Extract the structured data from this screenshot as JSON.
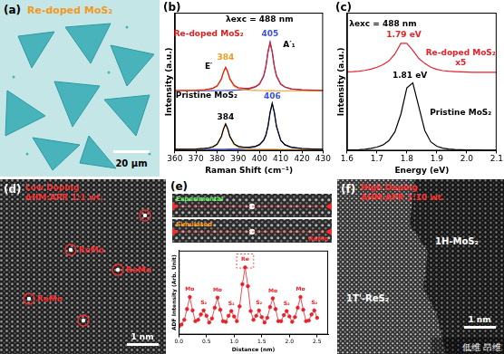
{
  "chart_data": [
    {
      "type": "line",
      "panel": "(b)",
      "x_label": "Raman Shift (cm⁻¹)",
      "y_label": "Intensity (a.u.)",
      "tick_labels": "x",
      "grid": false,
      "x": [
        360,
        365,
        370,
        374,
        376,
        378,
        380,
        382,
        383,
        384,
        385,
        386,
        388,
        390,
        392,
        395,
        398,
        400,
        402,
        403,
        404,
        405,
        406,
        407,
        408,
        410,
        412,
        415,
        420,
        425,
        430
      ],
      "xlim": [
        360,
        430
      ],
      "xticks": [
        360,
        370,
        380,
        390,
        400,
        410,
        420,
        430
      ],
      "ylim": [
        0,
        120
      ],
      "series": [
        {
          "color": "#e02020",
          "line_style": "solid",
          "values": [
            52.3,
            52.4,
            52.6,
            53.0,
            53.5,
            54.4,
            56.4,
            62.4,
            68.5,
            72.6,
            68.6,
            62.6,
            56.7,
            54.8,
            54.3,
            54.1,
            55.7,
            58.2,
            65.3,
            73.3,
            86.0,
            94.3,
            86.0,
            73.3,
            65.2,
            58.0,
            55.4,
            53.8,
            52.9,
            52.6,
            52.4
          ]
        },
        {
          "color": "#f39a1e",
          "line_style": "solid",
          "values": [
            52.1,
            52.2,
            52.4,
            52.8,
            53.2,
            54,
            56,
            62,
            68,
            72,
            68,
            62,
            56,
            54,
            53.2,
            52.6,
            52.4,
            52.3,
            52.3,
            52.2,
            52.2,
            52.2,
            52.2,
            52.2,
            52.1,
            52.1,
            52.1,
            52.1,
            52.1,
            52,
            52
          ]
        },
        {
          "color": "#3a4fe0",
          "line_style": "solid",
          "values": [
            52.1,
            52.1,
            52.1,
            52.2,
            52.2,
            52.2,
            52.3,
            52.3,
            52.3,
            52.4,
            52.4,
            52.5,
            52.6,
            52.7,
            53,
            53.6,
            55.2,
            57.8,
            64.9,
            73,
            85.6,
            94,
            85.6,
            73,
            64.9,
            57.8,
            55.2,
            53.6,
            52.7,
            52.4,
            52.3
          ]
        },
        {
          "color": "#000000",
          "line_style": "solid",
          "values": [
            1.2,
            1.3,
            1.5,
            2.0,
            2.5,
            3.4,
            5.6,
            12.3,
            18.9,
            23.3,
            19.0,
            12.4,
            5.9,
            3.8,
            3.1,
            3.0,
            3.8,
            5.3,
            9.3,
            13.5,
            21.2,
            33.2,
            41.2,
            33.2,
            21.2,
            9.1,
            5.1,
            3.0,
            1.9,
            1.5,
            1.3
          ]
        },
        {
          "color": "#f39a1e",
          "line_style": "solid",
          "values": [
            1.2,
            1.2,
            1.4,
            1.9,
            2.3,
            3.2,
            5.4,
            12,
            18.6,
            23,
            18.6,
            12,
            5.4,
            3.2,
            2.3,
            1.7,
            1.4,
            1.3,
            1.3,
            1.2,
            1.2,
            1.2,
            1.2,
            1.2,
            1.2,
            1.1,
            1.1,
            1.1,
            1.1,
            1,
            1
          ]
        },
        {
          "color": "#3a4fe0",
          "line_style": "solid",
          "values": [
            1.1,
            1.1,
            1.1,
            1.2,
            1.2,
            1.2,
            1.2,
            1.3,
            1.3,
            1.3,
            1.4,
            1.4,
            1.5,
            1.6,
            1.8,
            2.3,
            3.4,
            5,
            9,
            13.3,
            21,
            33,
            41,
            33,
            21,
            9,
            5,
            2.9,
            1.8,
            1.4,
            1.3
          ]
        }
      ],
      "annotations": [
        {
          "text": "λexc = 488 nm",
          "x": 400,
          "y": 114,
          "color": "#000000"
        },
        {
          "text": "Re-doped MoS₂",
          "x": 376,
          "y": 101,
          "color": "#e02020"
        },
        {
          "text": "384",
          "x": 384,
          "y": 81,
          "color": "#f39a1e"
        },
        {
          "text": "E′",
          "x": 376,
          "y": 73,
          "color": "#000000"
        },
        {
          "text": "405",
          "x": 405,
          "y": 101,
          "color": "#3a4fe0"
        },
        {
          "text": "A′₁",
          "x": 414,
          "y": 92,
          "color": "#000000"
        },
        {
          "text": "Pristine MoS₂",
          "x": 375,
          "y": 48,
          "color": "#000000"
        },
        {
          "text": "384",
          "x": 384,
          "y": 29,
          "color": "#000000"
        },
        {
          "text": "406",
          "x": 406,
          "y": 47,
          "color": "#3a4fe0"
        }
      ]
    },
    {
      "type": "line",
      "panel": "(c)",
      "x_label": "Energy (eV)",
      "y_label": "Intensity (a.u.)",
      "tick_labels": "x",
      "grid": false,
      "x": [
        1.6,
        1.62,
        1.64,
        1.66,
        1.68,
        1.7,
        1.72,
        1.74,
        1.76,
        1.78,
        1.8,
        1.82,
        1.84,
        1.86,
        1.88,
        1.9,
        1.92,
        1.94,
        1.96,
        1.98,
        2.0,
        2.02,
        2.04,
        2.06,
        2.08,
        2.1
      ],
      "xlim": [
        1.6,
        2.1
      ],
      "xticks": [
        1.6,
        1.7,
        1.8,
        1.9,
        {
          "value": 2,
          "label": "2.0"
        },
        2.1
      ],
      "ylim": [
        0,
        110
      ],
      "series": [
        {
          "color": "#e8202a",
          "line_style": "solid",
          "values": [
            62.8,
            63,
            63.4,
            64,
            65,
            66.5,
            68.5,
            71.5,
            77,
            85.5,
            85.5,
            80,
            73.5,
            69.5,
            66.5,
            64.8,
            63.8,
            63.3,
            63,
            62.8,
            62.6,
            62.5,
            62.5,
            62.4,
            62.4,
            62.4
          ]
        },
        {
          "color": "#000000",
          "line_style": "solid",
          "values": [
            0.5,
            0.6,
            0.8,
            1.2,
            1.8,
            2.8,
            4.5,
            8,
            15,
            29,
            50,
            54,
            35,
            16,
            7,
            3.5,
            2,
            1.3,
            0.9,
            0.7,
            0.6,
            0.5,
            0.5,
            0.4,
            0.4,
            0.4
          ]
        }
      ],
      "annotations": [
        {
          "text": "λexc = 488 nm",
          "x": 1.72,
          "y": 101,
          "color": "#000000"
        },
        {
          "text": "1.79 eV",
          "x": 1.79,
          "y": 92,
          "color": "#e8202a"
        },
        {
          "text": "Re-doped MoS₂",
          "x": 1.98,
          "y": 78,
          "color": "#e8202a"
        },
        {
          "text": "x5",
          "x": 1.98,
          "y": 70,
          "color": "#e8202a"
        },
        {
          "text": "1.81 eV",
          "x": 1.81,
          "y": 60,
          "color": "#000000"
        },
        {
          "text": "Pristine MoS₂",
          "x": 1.98,
          "y": 30,
          "color": "#000000"
        }
      ]
    },
    {
      "type": "line",
      "x_label": "Distance (nm)",
      "y_label": "ADF Intensity (Arb. Unit)",
      "tick_labels": "x",
      "grid": false,
      "x": [
        0,
        0.05,
        0.1,
        0.15,
        0.2,
        0.25,
        0.3,
        0.35,
        0.4,
        0.45,
        0.5,
        0.55,
        0.6,
        0.65,
        0.7,
        0.75,
        0.8,
        0.85,
        0.9,
        0.95,
        1,
        1.05,
        1.1,
        1.15,
        1.2,
        1.25,
        1.3,
        1.35,
        1.4,
        1.45,
        1.5,
        1.55,
        1.6,
        1.65,
        1.7,
        1.75,
        1.8,
        1.85,
        1.9,
        1.95,
        2,
        2.05,
        2.1,
        2.15,
        2.2,
        2.25,
        2.3,
        2.35,
        2.4,
        2.45,
        2.5
      ],
      "xlim": [
        0,
        2.7
      ],
      "xticks": [
        {
          "value": 0,
          "label": "0.0"
        },
        0.5,
        {
          "value": 1,
          "label": "1.0"
        },
        1.5,
        {
          "value": 2,
          "label": "2.0"
        },
        2.5
      ],
      "ylim": [
        0,
        1.25
      ],
      "series": [
        {
          "color": "#e8202a",
          "marker": "circle",
          "line_style": "solid",
          "values": [
            0.12,
            0.15,
            0.22,
            0.38,
            0.56,
            0.36,
            0.2,
            0.22,
            0.3,
            0.36,
            0.28,
            0.18,
            0.24,
            0.4,
            0.55,
            0.37,
            0.2,
            0.19,
            0.28,
            0.35,
            0.27,
            0.2,
            0.42,
            0.75,
            1.0,
            0.72,
            0.35,
            0.22,
            0.28,
            0.36,
            0.26,
            0.18,
            0.25,
            0.41,
            0.54,
            0.38,
            0.2,
            0.2,
            0.29,
            0.35,
            0.27,
            0.19,
            0.26,
            0.4,
            0.56,
            0.37,
            0.2,
            0.21,
            0.3,
            0.36,
            0.25
          ]
        }
      ],
      "annotations": [
        {
          "text": "Mo",
          "x": 0.2,
          "y": 0.67,
          "color": "#e8202a"
        },
        {
          "text": "S₂",
          "x": 0.45,
          "y": 0.47,
          "color": "#e8202a"
        },
        {
          "text": "Mo",
          "x": 0.7,
          "y": 0.66,
          "color": "#e8202a"
        },
        {
          "text": "S₂",
          "x": 0.95,
          "y": 0.46,
          "color": "#e8202a"
        },
        {
          "text": "Re",
          "x": 1.2,
          "y": 1.12,
          "color": "#e8202a"
        },
        {
          "text": "S₂",
          "x": 1.45,
          "y": 0.47,
          "color": "#e8202a"
        },
        {
          "text": "Mo",
          "x": 1.7,
          "y": 0.65,
          "color": "#e8202a"
        },
        {
          "text": "S₂",
          "x": 1.95,
          "y": 0.46,
          "color": "#e8202a"
        },
        {
          "text": "Mo",
          "x": 2.2,
          "y": 0.67,
          "color": "#e8202a"
        },
        {
          "text": "S₂",
          "x": 2.45,
          "y": 0.47,
          "color": "#e8202a"
        }
      ]
    }
  ],
  "images": [
    {
      "panel": "(a)",
      "texts": [
        "Re-doped MoS₂"
      ],
      "scale_bar": "20 μm"
    },
    {
      "panel": "(d)",
      "texts": [
        "Low Doping",
        "AHM:APR 1:1 wt."
      ],
      "site_labels": [
        "ReMo",
        "ReMo",
        "ReMo"
      ],
      "scale_bar": "1 nm"
    },
    {
      "panel": "(e)",
      "image_labels": [
        "Experimental",
        "Simulated"
      ],
      "site_labels": [
        "ReMo"
      ]
    },
    {
      "panel": "(f)",
      "texts": [
        "High Doping",
        "AHM:APR 1:10 wt."
      ],
      "region_labels": [
        "1T'-ReS₂",
        "1H-MoS₂"
      ],
      "scale_bar": "1 nm"
    }
  ],
  "watermark": "低维 昂维"
}
